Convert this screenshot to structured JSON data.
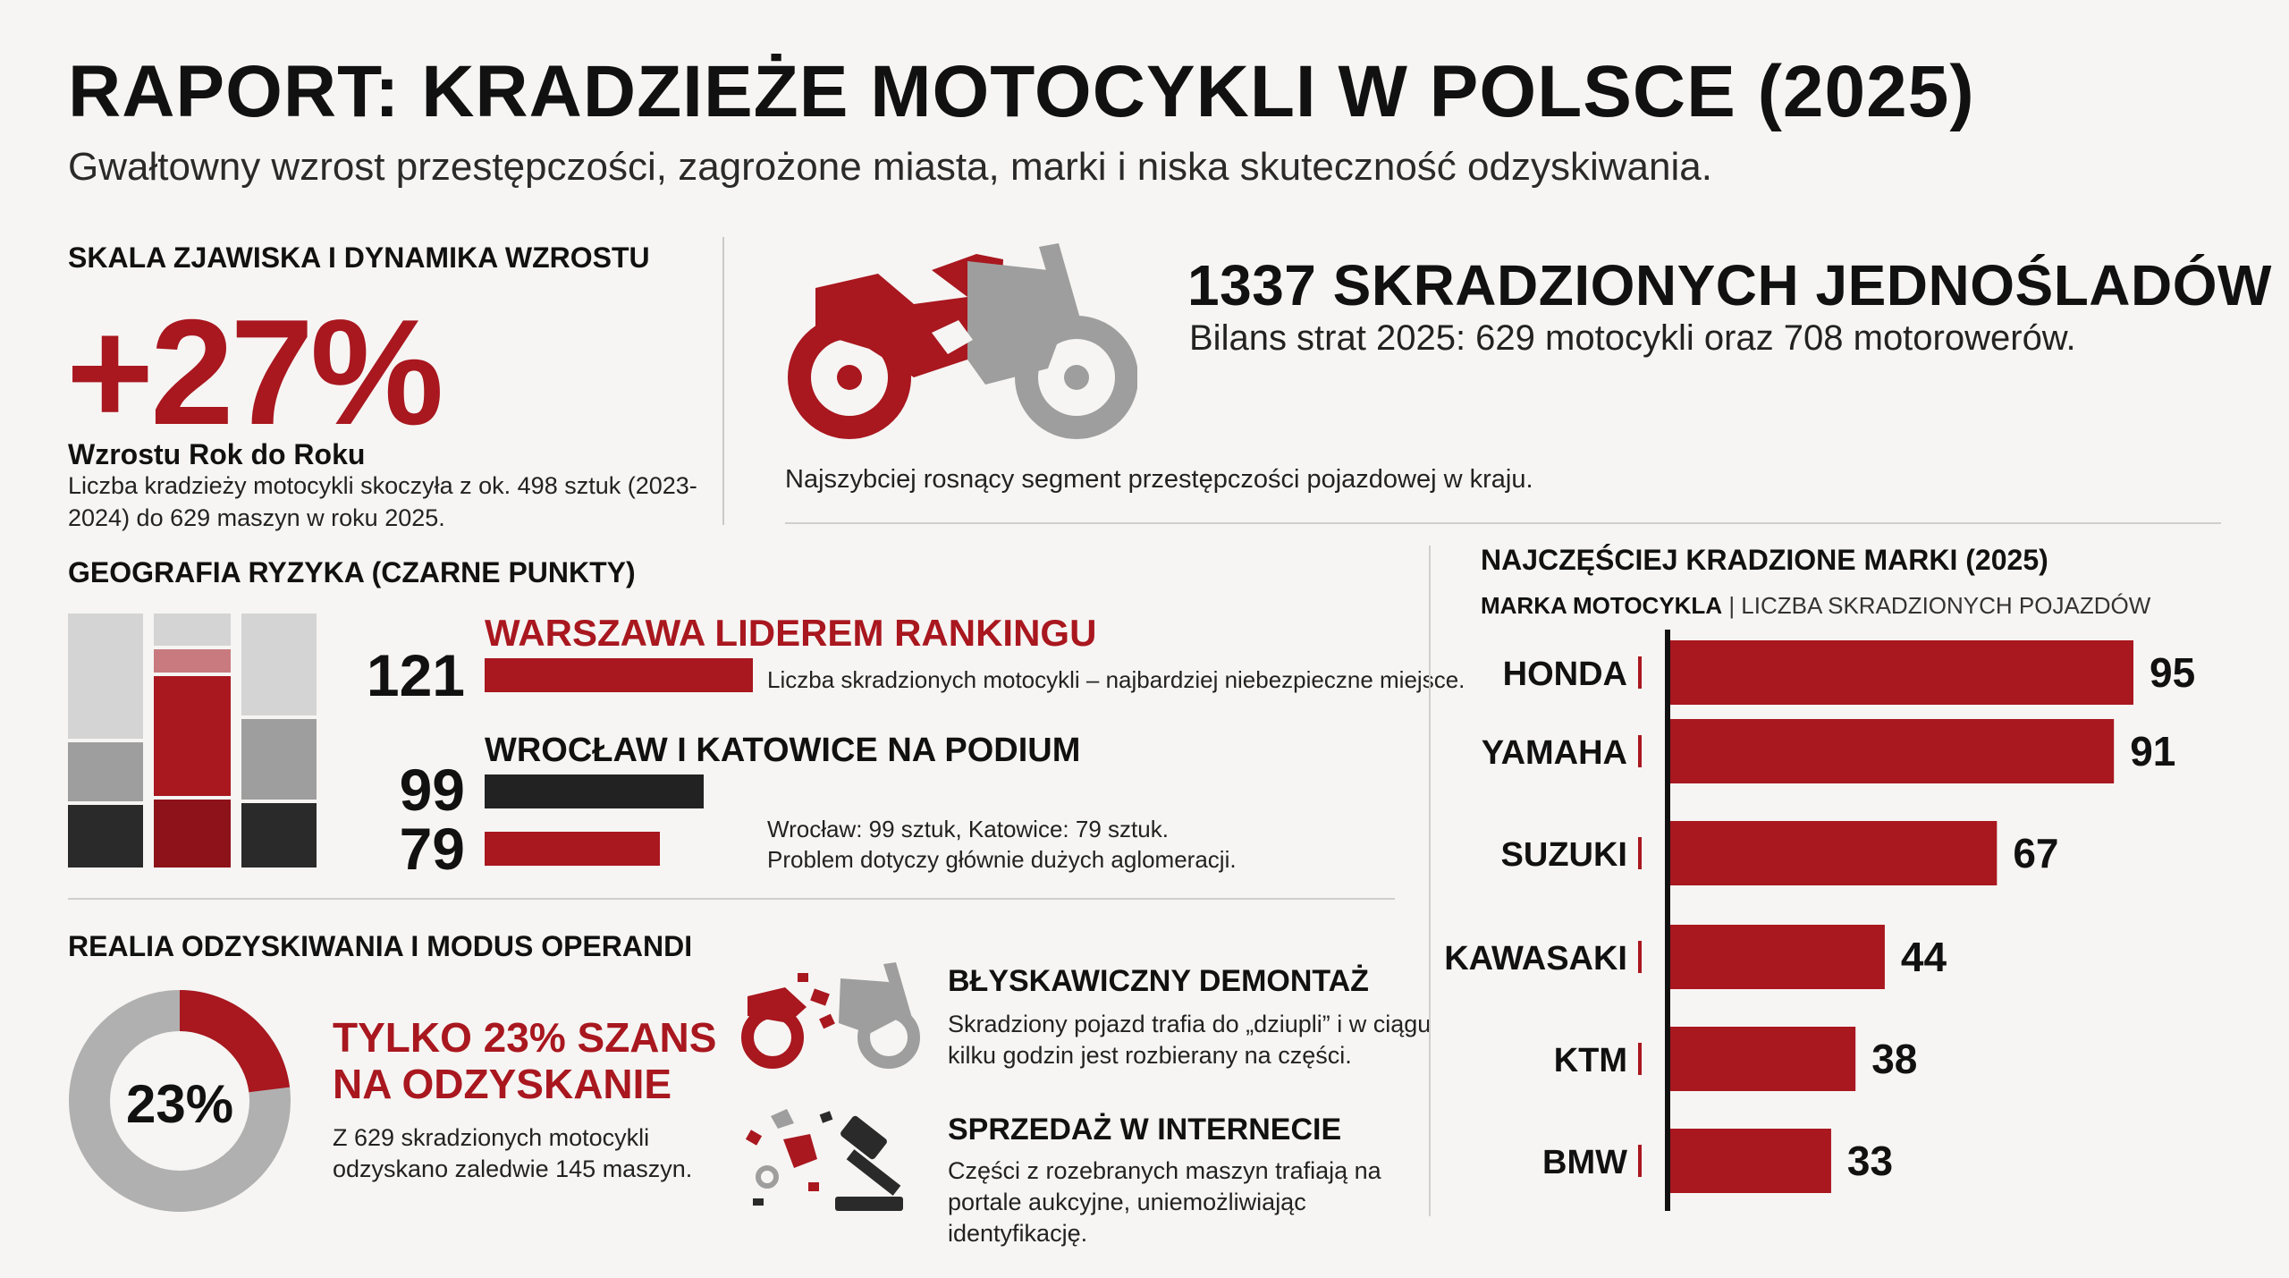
{
  "header": {
    "title": "RAPORT: KRADZIEŻE MOTOCYKLI W POLSCE (2025)",
    "subtitle": "Gwałtowny wzrost przestępczości, zagrożone miasta, marki i niska skuteczność odzyskiwania."
  },
  "scale": {
    "heading": "SKALA ZJAWISKA I DYNAMIKA WZROSTU",
    "growth_value": "+27%",
    "growth_label": "Wzrostu Rok do Roku",
    "growth_desc": "Liczba kradzieży motocykli skoczyła z ok. 498 sztuk (2023-2024) do 629 maszyn w roku 2025."
  },
  "totals": {
    "heading": "1337 SKRADZIONYCH JEDNOŚLADÓW",
    "subheading": "Bilans strat 2025: 629 motocykli oraz 708 motorowerów.",
    "note": "Najszybciej rosnący segment przestępczości pojazdowej w kraju."
  },
  "geography": {
    "heading": "GEOGRAFIA RYZYKA (CZARNE PUNKTY)",
    "leader_heading": "WARSZAWA LIDEREM RANKINGU",
    "leader_value": "121",
    "leader_note": "Liczba skradzionych motocykli – najbardziej niebezpieczne miejsce.",
    "podium_heading": "WROCŁAW I KATOWICE NA PODIUM",
    "podium_value_1": "99",
    "podium_value_2": "79",
    "podium_note_1": "Wrocław: 99 sztuk, Katowice: 79 sztuk.",
    "podium_note_2": "Problem dotyczy głównie dużych aglomeracji.",
    "values": [
      121,
      99,
      79
    ]
  },
  "recovery": {
    "heading": "REALIA ODZYSKIWANIA I MODUS OPERANDI",
    "donut_value": 23,
    "donut_label": "23%",
    "headline": "TYLKO 23% SZANS NA ODZYSKANIE",
    "desc": "Z 629 skradzionych motocykli odzyskano zaledwie 145 maszyn.",
    "modus": [
      {
        "title": "BŁYSKAWICZNY DEMONTAŻ",
        "desc": "Skradziony pojazd trafia do „dziupli” i w ciągu kilku godzin jest rozbierany na części."
      },
      {
        "title": "SPRZEDAŻ W INTERNECIE",
        "desc": "Części z rozebranych maszyn trafiają na portale aukcyjne, uniemożliwiając identyfikację."
      }
    ]
  },
  "brands": {
    "heading": "NAJCZĘŚCIEJ KRADZIONE MARKI (2025)",
    "sub_bold": "MARKA MOTOCYKLA",
    "sub_rest": " | LICZBA SKRADZIONYCH POJAZDÓW"
  },
  "colors": {
    "accent": "#a9171f",
    "dark": "#222222",
    "grey": "#9e9e9e",
    "light_grey": "#d4d4d4"
  },
  "icons": [
    "motorcycle-icon",
    "dismantled-motorcycle-icon",
    "auction-gavel-icon",
    "parts-icon"
  ],
  "chart_data": {
    "type": "bar",
    "orientation": "horizontal",
    "title": "NAJCZĘŚCIEJ KRADZIONE MARKI (2025)",
    "categories": [
      "HONDA",
      "YAMAHA",
      "SUZUKI",
      "KAWASAKI",
      "KTM",
      "BMW"
    ],
    "values": [
      95,
      91,
      67,
      44,
      38,
      33
    ],
    "xlabel": "LICZBA SKRADZIONYCH POJAZDÓW",
    "ylabel": "MARKA MOTOCYKLA",
    "xlim": [
      0,
      100
    ],
    "grid": false,
    "legend": "none"
  }
}
